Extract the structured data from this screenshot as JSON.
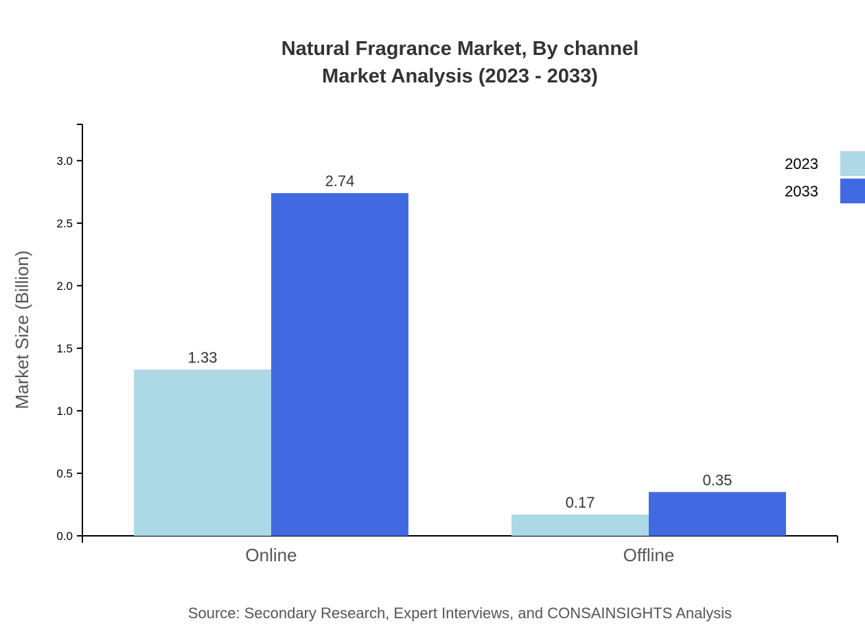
{
  "chart_data": {
    "type": "bar",
    "title": "Natural Fragrance Market, By channel",
    "subtitle": "Market Analysis (2023 - 2033)",
    "xlabel": "",
    "ylabel": "Market Size (Billion)",
    "categories": [
      "Online",
      "Offline"
    ],
    "series": [
      {
        "name": "2023",
        "values": [
          1.33,
          0.17
        ],
        "color": "#ADD8E6"
      },
      {
        "name": "2033",
        "values": [
          2.74,
          0.35
        ],
        "color": "#4169E1"
      }
    ],
    "ylim": [
      0,
      3.29
    ],
    "yticks": [
      "0.0",
      "0.5",
      "1.0",
      "1.5",
      "2.0",
      "2.5",
      "3.0"
    ],
    "grid": false,
    "legend_position": "top-right",
    "source": "Source: Secondary Research, Expert Interviews, and CONSAINSIGHTS Analysis"
  }
}
